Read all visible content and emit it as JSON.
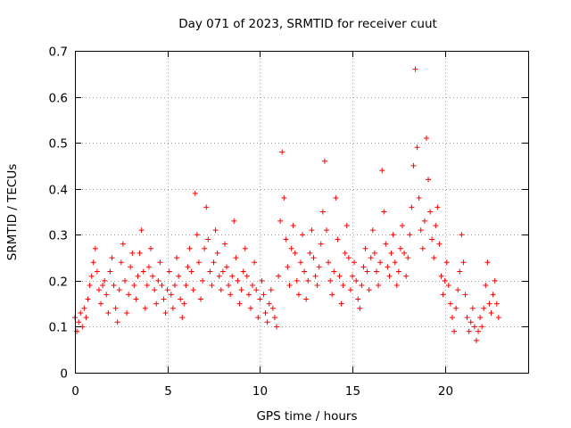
{
  "chart_data": {
    "type": "scatter",
    "title": "Day 071 of 2023, SRMTID for receiver cuut",
    "xlabel": "GPS time / hours",
    "ylabel": "SRMTID / TECUs",
    "xlim": [
      0,
      24.5
    ],
    "ylim": [
      0,
      0.7
    ],
    "xticks": [
      0,
      5,
      10,
      15,
      20
    ],
    "xtick_labels": [
      "0",
      "5",
      "10",
      "15",
      "20"
    ],
    "yticks": [
      0,
      0.1,
      0.2,
      0.3,
      0.4,
      0.5,
      0.6,
      0.7
    ],
    "ytick_labels": [
      "0",
      "0.1",
      "0.2",
      "0.3",
      "0.4",
      "0.5",
      "0.6",
      "0.7"
    ],
    "grid": true,
    "marker": "+",
    "color": "#ff0000",
    "series": [
      {
        "name": "SRMTID",
        "x": [
          0.0,
          0.1,
          0.2,
          0.3,
          0.4,
          0.5,
          0.6,
          0.7,
          0.8,
          0.9,
          1.0,
          1.1,
          1.2,
          1.3,
          1.4,
          1.5,
          1.6,
          1.7,
          1.8,
          1.9,
          2.0,
          2.1,
          2.2,
          2.3,
          2.4,
          2.5,
          2.6,
          2.7,
          2.8,
          2.9,
          3.0,
          3.1,
          3.2,
          3.3,
          3.4,
          3.5,
          3.6,
          3.7,
          3.8,
          3.9,
          4.0,
          4.1,
          4.2,
          4.3,
          4.4,
          4.5,
          4.6,
          4.7,
          4.8,
          4.9,
          5.0,
          5.1,
          5.2,
          5.3,
          5.4,
          5.5,
          5.6,
          5.7,
          5.8,
          5.9,
          6.0,
          6.1,
          6.2,
          6.3,
          6.4,
          6.5,
          6.6,
          6.7,
          6.8,
          6.9,
          7.0,
          7.1,
          7.2,
          7.3,
          7.4,
          7.5,
          7.6,
          7.7,
          7.8,
          7.9,
          8.0,
          8.1,
          8.2,
          8.3,
          8.4,
          8.5,
          8.6,
          8.7,
          8.8,
          8.9,
          9.0,
          9.1,
          9.2,
          9.3,
          9.4,
          9.5,
          9.6,
          9.7,
          9.8,
          9.9,
          10.0,
          10.1,
          10.2,
          10.3,
          10.4,
          10.5,
          10.6,
          10.7,
          10.8,
          10.9,
          11.0,
          11.1,
          11.2,
          11.3,
          11.4,
          11.5,
          11.6,
          11.7,
          11.8,
          11.9,
          12.0,
          12.1,
          12.2,
          12.3,
          12.4,
          12.5,
          12.6,
          12.7,
          12.8,
          12.9,
          13.0,
          13.1,
          13.2,
          13.3,
          13.4,
          13.5,
          13.6,
          13.7,
          13.8,
          13.9,
          14.0,
          14.1,
          14.2,
          14.3,
          14.4,
          14.5,
          14.6,
          14.7,
          14.8,
          14.9,
          15.0,
          15.1,
          15.2,
          15.3,
          15.4,
          15.5,
          15.6,
          15.7,
          15.8,
          15.9,
          16.0,
          16.1,
          16.2,
          16.3,
          16.4,
          16.5,
          16.6,
          16.7,
          16.8,
          16.9,
          17.0,
          17.1,
          17.2,
          17.3,
          17.4,
          17.5,
          17.6,
          17.7,
          17.8,
          17.9,
          18.0,
          18.1,
          18.2,
          18.3,
          18.4,
          18.5,
          18.6,
          18.7,
          18.8,
          18.9,
          19.0,
          19.1,
          19.2,
          19.3,
          19.4,
          19.5,
          19.6,
          19.7,
          19.8,
          19.9,
          20.0,
          20.1,
          20.2,
          20.3,
          20.4,
          20.5,
          20.6,
          20.7,
          20.8,
          20.9,
          21.0,
          21.1,
          21.2,
          21.3,
          21.4,
          21.5,
          21.6,
          21.7,
          21.8,
          21.9,
          22.0,
          22.1,
          22.2,
          22.3,
          22.4,
          22.5,
          22.6,
          22.7,
          22.8,
          22.9
        ],
        "y": [
          0.12,
          0.09,
          0.11,
          0.13,
          0.1,
          0.14,
          0.12,
          0.16,
          0.19,
          0.21,
          0.24,
          0.27,
          0.22,
          0.18,
          0.15,
          0.19,
          0.2,
          0.17,
          0.13,
          0.22,
          0.25,
          0.19,
          0.14,
          0.11,
          0.18,
          0.24,
          0.28,
          0.2,
          0.13,
          0.17,
          0.23,
          0.26,
          0.19,
          0.16,
          0.21,
          0.26,
          0.31,
          0.22,
          0.14,
          0.19,
          0.23,
          0.27,
          0.21,
          0.18,
          0.15,
          0.2,
          0.24,
          0.19,
          0.16,
          0.13,
          0.18,
          0.22,
          0.17,
          0.14,
          0.19,
          0.25,
          0.21,
          0.16,
          0.12,
          0.15,
          0.19,
          0.23,
          0.27,
          0.22,
          0.18,
          0.39,
          0.3,
          0.24,
          0.16,
          0.2,
          0.27,
          0.36,
          0.29,
          0.22,
          0.19,
          0.24,
          0.31,
          0.26,
          0.21,
          0.18,
          0.22,
          0.28,
          0.23,
          0.19,
          0.17,
          0.21,
          0.33,
          0.25,
          0.2,
          0.15,
          0.18,
          0.22,
          0.27,
          0.21,
          0.17,
          0.14,
          0.19,
          0.24,
          0.18,
          0.12,
          0.16,
          0.2,
          0.17,
          0.13,
          0.11,
          0.15,
          0.18,
          0.14,
          0.12,
          0.1,
          0.21,
          0.33,
          0.48,
          0.38,
          0.29,
          0.23,
          0.19,
          0.27,
          0.32,
          0.26,
          0.2,
          0.17,
          0.24,
          0.3,
          0.22,
          0.16,
          0.2,
          0.26,
          0.31,
          0.25,
          0.21,
          0.19,
          0.23,
          0.28,
          0.35,
          0.46,
          0.31,
          0.24,
          0.2,
          0.17,
          0.22,
          0.38,
          0.29,
          0.21,
          0.15,
          0.19,
          0.26,
          0.32,
          0.25,
          0.18,
          0.21,
          0.24,
          0.2,
          0.16,
          0.14,
          0.19,
          0.23,
          0.27,
          0.22,
          0.18,
          0.25,
          0.31,
          0.26,
          0.22,
          0.19,
          0.24,
          0.44,
          0.35,
          0.28,
          0.23,
          0.21,
          0.26,
          0.3,
          0.24,
          0.19,
          0.22,
          0.27,
          0.32,
          0.26,
          0.21,
          0.25,
          0.3,
          0.36,
          0.45,
          0.66,
          0.49,
          0.38,
          0.31,
          0.27,
          0.33,
          0.51,
          0.42,
          0.35,
          0.29,
          0.25,
          0.32,
          0.36,
          0.28,
          0.21,
          0.17,
          0.2,
          0.24,
          0.19,
          0.15,
          0.12,
          0.09,
          0.14,
          0.18,
          0.22,
          0.3,
          0.24,
          0.17,
          0.12,
          0.09,
          0.11,
          0.14,
          0.1,
          0.07,
          0.09,
          0.12,
          0.1,
          0.14,
          0.19,
          0.24,
          0.15,
          0.13,
          0.17,
          0.2,
          0.15,
          0.12
        ]
      }
    ]
  }
}
